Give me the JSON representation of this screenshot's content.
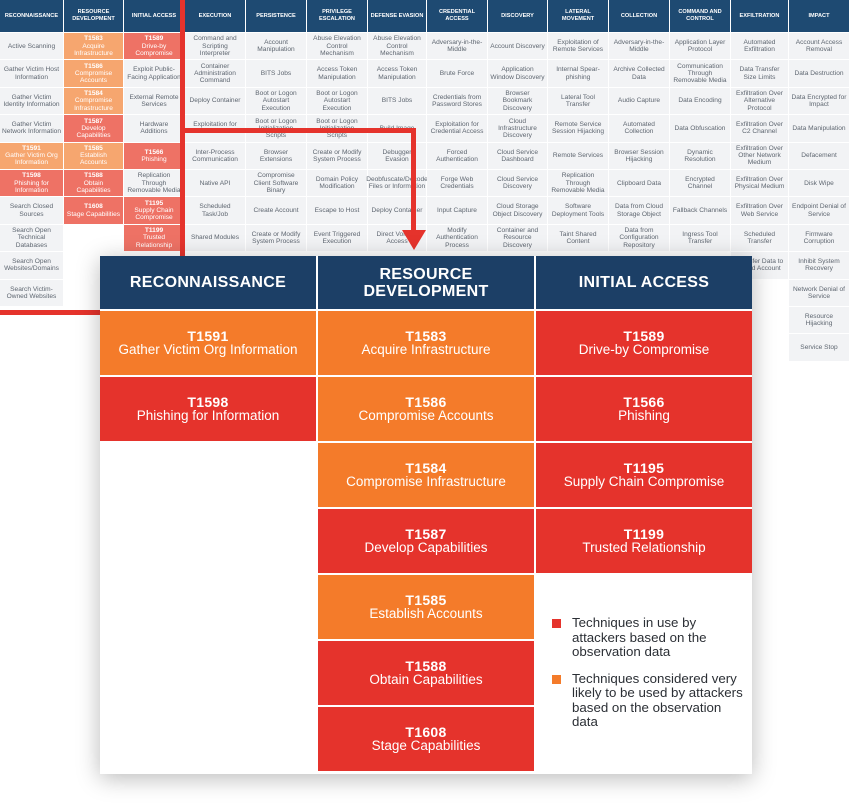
{
  "colors": {
    "header_navy": "#1c3f66",
    "in_use_red": "#e5332c",
    "likely_orange": "#f47b2a",
    "cell_gray": "#f2f3f5",
    "highlight_red": "#e5332c"
  },
  "matrix": {
    "columns": [
      {
        "header": "RECONNAISSANCE",
        "cells": [
          {
            "t": "Active Scanning"
          },
          {
            "t": "Gather Victim Host Information"
          },
          {
            "t": "Gather Victim Identity Information"
          },
          {
            "t": "Gather Victim Network Information"
          },
          {
            "id": "T1591",
            "t": "Gather Victim Org Information",
            "s": "o"
          },
          {
            "id": "T1598",
            "t": "Phishing for Information",
            "s": "r"
          },
          {
            "t": "Search Closed Sources"
          },
          {
            "t": "Search Open Technical Databases"
          },
          {
            "t": "Search Open Websites/Domains"
          },
          {
            "t": "Search Victim-Owned Websites"
          }
        ]
      },
      {
        "header": "RESOURCE DEVELOPMENT",
        "cells": [
          {
            "id": "T1583",
            "t": "Acquire Infrastructure",
            "s": "o"
          },
          {
            "id": "T1586",
            "t": "Compromise Accounts",
            "s": "o"
          },
          {
            "id": "T1584",
            "t": "Compromise Infrastructure",
            "s": "o"
          },
          {
            "id": "T1587",
            "t": "Develop Capabilities",
            "s": "r"
          },
          {
            "id": "T1585",
            "t": "Establish Accounts",
            "s": "o"
          },
          {
            "id": "T1588",
            "t": "Obtain Capabilities",
            "s": "r"
          },
          {
            "id": "T1608",
            "t": "Stage Capabilities",
            "s": "r"
          }
        ]
      },
      {
        "header": "INITIAL ACCESS",
        "cells": [
          {
            "id": "T1589",
            "t": "Drive-by Compromise",
            "s": "r"
          },
          {
            "t": "Exploit Public-Facing Application"
          },
          {
            "t": "External Remote Services"
          },
          {
            "t": "Hardware Additions"
          },
          {
            "id": "T1566",
            "t": "Phishing",
            "s": "r"
          },
          {
            "t": "Replication Through Removable Media"
          },
          {
            "id": "T1195",
            "t": "Supply Chain Compromise",
            "s": "r"
          },
          {
            "id": "T1199",
            "t": "Trusted Relationship",
            "s": "r"
          }
        ]
      },
      {
        "header": "EXECUTION",
        "cells": [
          {
            "t": "Command and Scripting Interpreter"
          },
          {
            "t": "Container Administration Command"
          },
          {
            "t": "Deploy Container"
          },
          {
            "t": "Exploitation for Client Execution"
          },
          {
            "t": "Inter-Process Communication"
          },
          {
            "t": "Native API"
          },
          {
            "t": "Scheduled Task/Job"
          },
          {
            "t": "Shared Modules"
          }
        ]
      },
      {
        "header": "PERSISTENCE",
        "cells": [
          {
            "t": "Account Manipulation"
          },
          {
            "t": "BITS Jobs"
          },
          {
            "t": "Boot or Logon Autostart Execution"
          },
          {
            "t": "Boot or Logon Initialization Scripts"
          },
          {
            "t": "Browser Extensions"
          },
          {
            "t": "Compromise Client Software Binary"
          },
          {
            "t": "Create Account"
          },
          {
            "t": "Create or Modify System Process"
          }
        ]
      },
      {
        "header": "PRIVILEGE ESCALATION",
        "cells": [
          {
            "t": "Abuse Elevation Control Mechanism"
          },
          {
            "t": "Access Token Manipulation"
          },
          {
            "t": "Boot or Logon Autostart Execution"
          },
          {
            "t": "Boot or Logon Initialization Scripts"
          },
          {
            "t": "Create or Modify System Process"
          },
          {
            "t": "Domain Policy Modification"
          },
          {
            "t": "Escape to Host"
          },
          {
            "t": "Event Triggered Execution"
          }
        ]
      },
      {
        "header": "DEFENSE EVASION",
        "cells": [
          {
            "t": "Abuse Elevation Control Mechanism"
          },
          {
            "t": "Access Token Manipulation"
          },
          {
            "t": "BITS Jobs"
          },
          {
            "t": "Build Image"
          },
          {
            "t": "Debugger Evasion"
          },
          {
            "t": "Deobfuscate/Decode Files or Information"
          },
          {
            "t": "Deploy Container"
          },
          {
            "t": "Direct Volume Access"
          }
        ]
      },
      {
        "header": "CREDENTIAL ACCESS",
        "cells": [
          {
            "t": "Adversary-in-the-Middle"
          },
          {
            "t": "Brute Force"
          },
          {
            "t": "Credentials from Password Stores"
          },
          {
            "t": "Exploitation for Credential Access"
          },
          {
            "t": "Forced Authentication"
          },
          {
            "t": "Forge Web Credentials"
          },
          {
            "t": "Input Capture"
          },
          {
            "t": "Modify Authentication Process"
          }
        ]
      },
      {
        "header": "DISCOVERY",
        "cells": [
          {
            "t": "Account Discovery"
          },
          {
            "t": "Application Window Discovery"
          },
          {
            "t": "Browser Bookmark Discovery"
          },
          {
            "t": "Cloud Infrastructure Discovery"
          },
          {
            "t": "Cloud Service Dashboard"
          },
          {
            "t": "Cloud Service Discovery"
          },
          {
            "t": "Cloud Storage Object Discovery"
          },
          {
            "t": "Container and Resource Discovery"
          }
        ]
      },
      {
        "header": "LATERAL MOVEMENT",
        "cells": [
          {
            "t": "Exploitation of Remote Services"
          },
          {
            "t": "Internal Spear-phishing"
          },
          {
            "t": "Lateral Tool Transfer"
          },
          {
            "t": "Remote Service Session Hijacking"
          },
          {
            "t": "Remote Services"
          },
          {
            "t": "Replication Through Removable Media"
          },
          {
            "t": "Software Deployment Tools"
          },
          {
            "t": "Taint Shared Content"
          }
        ]
      },
      {
        "header": "COLLECTION",
        "cells": [
          {
            "t": "Adversary-in-the-Middle"
          },
          {
            "t": "Archive Collected Data"
          },
          {
            "t": "Audio Capture"
          },
          {
            "t": "Automated Collection"
          },
          {
            "t": "Browser Session Hijacking"
          },
          {
            "t": "Clipboard Data"
          },
          {
            "t": "Data from Cloud Storage Object"
          },
          {
            "t": "Data from Configuration Repository"
          }
        ]
      },
      {
        "header": "COMMAND AND CONTROL",
        "cells": [
          {
            "t": "Application Layer Protocol"
          },
          {
            "t": "Communication Through Removable Media"
          },
          {
            "t": "Data Encoding"
          },
          {
            "t": "Data Obfuscation"
          },
          {
            "t": "Dynamic Resolution"
          },
          {
            "t": "Encrypted Channel"
          },
          {
            "t": "Fallback Channels"
          },
          {
            "t": "Ingress Tool Transfer"
          }
        ]
      },
      {
        "header": "EXFILTRATION",
        "cells": [
          {
            "t": "Automated Exfiltration"
          },
          {
            "t": "Data Transfer Size Limits"
          },
          {
            "t": "Exfiltration Over Alternative Protocol"
          },
          {
            "t": "Exfiltration Over C2 Channel"
          },
          {
            "t": "Exfiltration Over Other Network Medium"
          },
          {
            "t": "Exfiltration Over Physical Medium"
          },
          {
            "t": "Exfiltration Over Web Service"
          },
          {
            "t": "Scheduled Transfer"
          },
          {
            "t": "Transfer Data to Cloud Account"
          }
        ]
      },
      {
        "header": "IMPACT",
        "cells": [
          {
            "t": "Account Access Removal"
          },
          {
            "t": "Data Destruction"
          },
          {
            "t": "Data Encrypted for Impact"
          },
          {
            "t": "Data Manipulation"
          },
          {
            "t": "Defacement"
          },
          {
            "t": "Disk Wipe"
          },
          {
            "t": "Endpoint Denial of Service"
          },
          {
            "t": "Firmware Corruption"
          },
          {
            "t": "Inhibit System Recovery"
          },
          {
            "t": "Network Denial of Service"
          },
          {
            "t": "Resource Hijacking"
          },
          {
            "t": "Service Stop"
          }
        ]
      }
    ]
  },
  "zoom": {
    "columns": [
      {
        "header": "RECONNAISSANCE",
        "cells": [
          {
            "id": "T1591",
            "t": "Gather Victim Org Information",
            "s": "o"
          },
          {
            "id": "T1598",
            "t": "Phishing for Information",
            "s": "r"
          }
        ]
      },
      {
        "header": "RESOURCE DEVELOPMENT",
        "cells": [
          {
            "id": "T1583",
            "t": "Acquire Infrastructure",
            "s": "o"
          },
          {
            "id": "T1586",
            "t": "Compromise Accounts",
            "s": "o"
          },
          {
            "id": "T1584",
            "t": "Compromise Infrastructure",
            "s": "o"
          },
          {
            "id": "T1587",
            "t": "Develop Capabilities",
            "s": "r"
          },
          {
            "id": "T1585",
            "t": "Establish Accounts",
            "s": "o"
          },
          {
            "id": "T1588",
            "t": "Obtain Capabilities",
            "s": "r"
          },
          {
            "id": "T1608",
            "t": "Stage Capabilities",
            "s": "r"
          }
        ]
      },
      {
        "header": "INITIAL ACCESS",
        "cells": [
          {
            "id": "T1589",
            "t": "Drive-by Compromise",
            "s": "r"
          },
          {
            "id": "T1566",
            "t": "Phishing",
            "s": "r"
          },
          {
            "id": "T1195",
            "t": "Supply Chain Compromise",
            "s": "r"
          },
          {
            "id": "T1199",
            "t": "Trusted Relationship",
            "s": "r"
          }
        ]
      }
    ]
  },
  "legend": {
    "items": [
      {
        "color": "#e5332c",
        "text": "Techniques in use by attackers based on the observation data"
      },
      {
        "color": "#f47b2a",
        "text": "Techniques considered very likely to be used by attackers based on the observation data"
      }
    ]
  }
}
